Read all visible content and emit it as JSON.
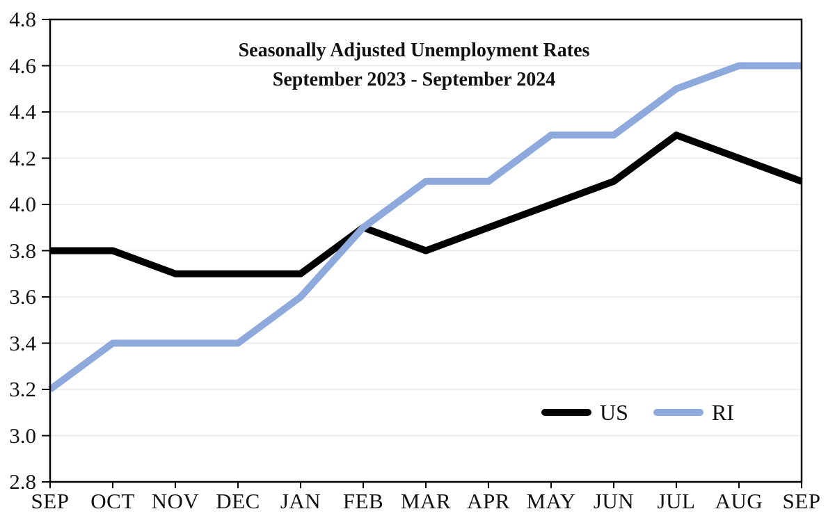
{
  "chart_data": {
    "type": "line",
    "title": "Seasonally Adjusted Unemployment Rates",
    "subtitle": "September 2023 - September 2024",
    "categories": [
      "SEP",
      "OCT",
      "NOV",
      "DEC",
      "JAN",
      "FEB",
      "MAR",
      "APR",
      "MAY",
      "JUN",
      "JUL",
      "AUG",
      "SEP"
    ],
    "series": [
      {
        "name": "US",
        "color": "#000000",
        "values": [
          3.8,
          3.8,
          3.7,
          3.7,
          3.7,
          3.9,
          3.8,
          3.9,
          4.0,
          4.1,
          4.3,
          4.2,
          4.1
        ]
      },
      {
        "name": "RI",
        "color": "#8EA9DB",
        "values": [
          3.2,
          3.4,
          3.4,
          3.4,
          3.6,
          3.9,
          4.1,
          4.1,
          4.3,
          4.3,
          4.5,
          4.6,
          4.6
        ]
      }
    ],
    "y_axis": {
      "min": 2.8,
      "max": 4.8,
      "step": 0.2,
      "tick_labels": [
        "2.8",
        "3.0",
        "3.2",
        "3.4",
        "3.6",
        "3.8",
        "4.0",
        "4.2",
        "4.4",
        "4.6",
        "4.8"
      ]
    },
    "x_axis": {
      "tick_labels": [
        "SEP",
        "OCT",
        "NOV",
        "DEC",
        "JAN",
        "FEB",
        "MAR",
        "APR",
        "MAY",
        "JUN",
        "JUL",
        "AUG",
        "SEP"
      ]
    },
    "grid": true,
    "legend_position": "inside-bottom-right",
    "colors": {
      "background": "#ffffff",
      "axis": "#000000",
      "grid": "#e8e8e8"
    }
  }
}
